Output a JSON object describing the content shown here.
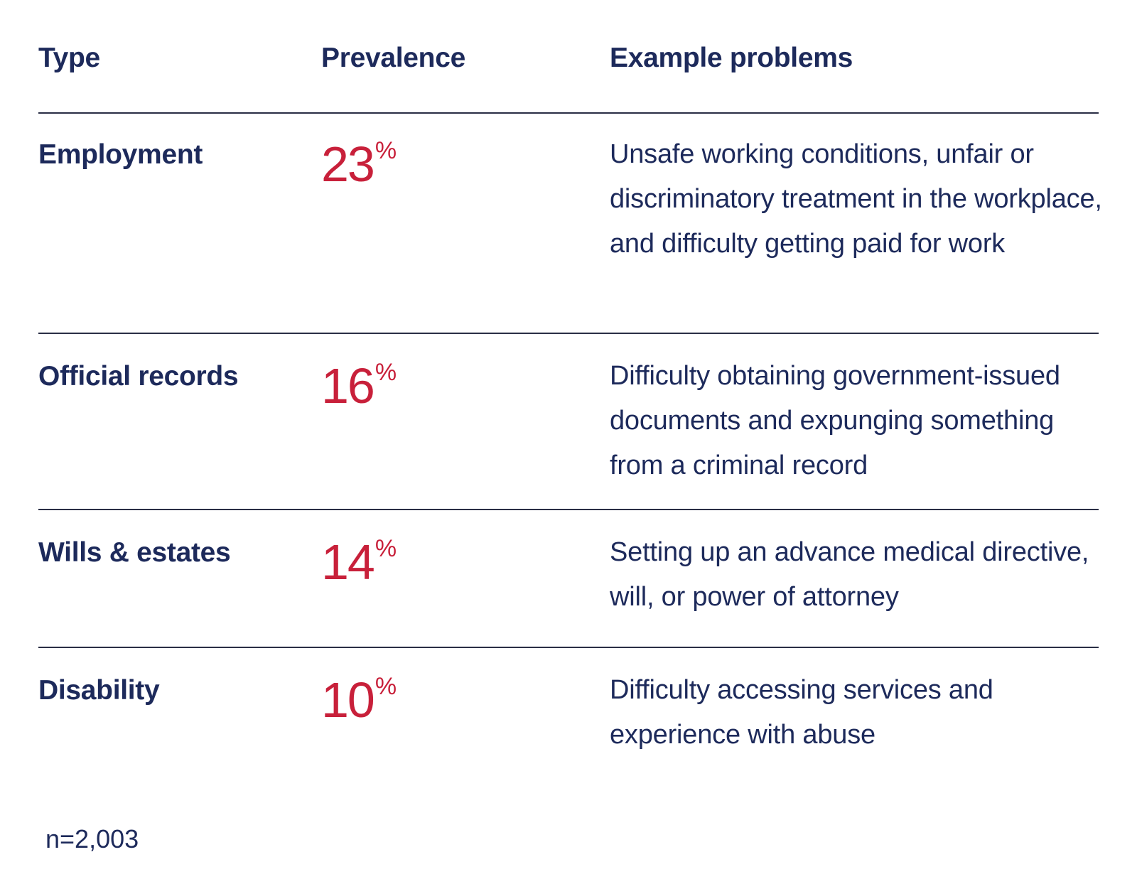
{
  "chart_data": {
    "type": "table",
    "columns": [
      "Type",
      "Prevalence",
      "Example problems"
    ],
    "rows": [
      {
        "type": "Employment",
        "prevalence": 23,
        "prevalence_unit": "%",
        "example": "Unsafe working conditions, unfair or discriminatory treatment in the workplace, and difficulty getting paid for work"
      },
      {
        "type": "Official records",
        "prevalence": 16,
        "prevalence_unit": "%",
        "example": "Difficulty obtaining government-issued documents and expunging something from a criminal record"
      },
      {
        "type": "Wills & estates",
        "prevalence": 14,
        "prevalence_unit": "%",
        "example": "Setting up an advance medical directive, will, or power of attorney"
      },
      {
        "type": "Disability",
        "prevalence": 10,
        "prevalence_unit": "%",
        "example": "Difficulty accessing services and experience with abuse"
      }
    ],
    "note": "n=2,003"
  },
  "colors": {
    "text": "#1d2a5b",
    "accent": "#c8203a",
    "rule": "#2a2e45"
  }
}
